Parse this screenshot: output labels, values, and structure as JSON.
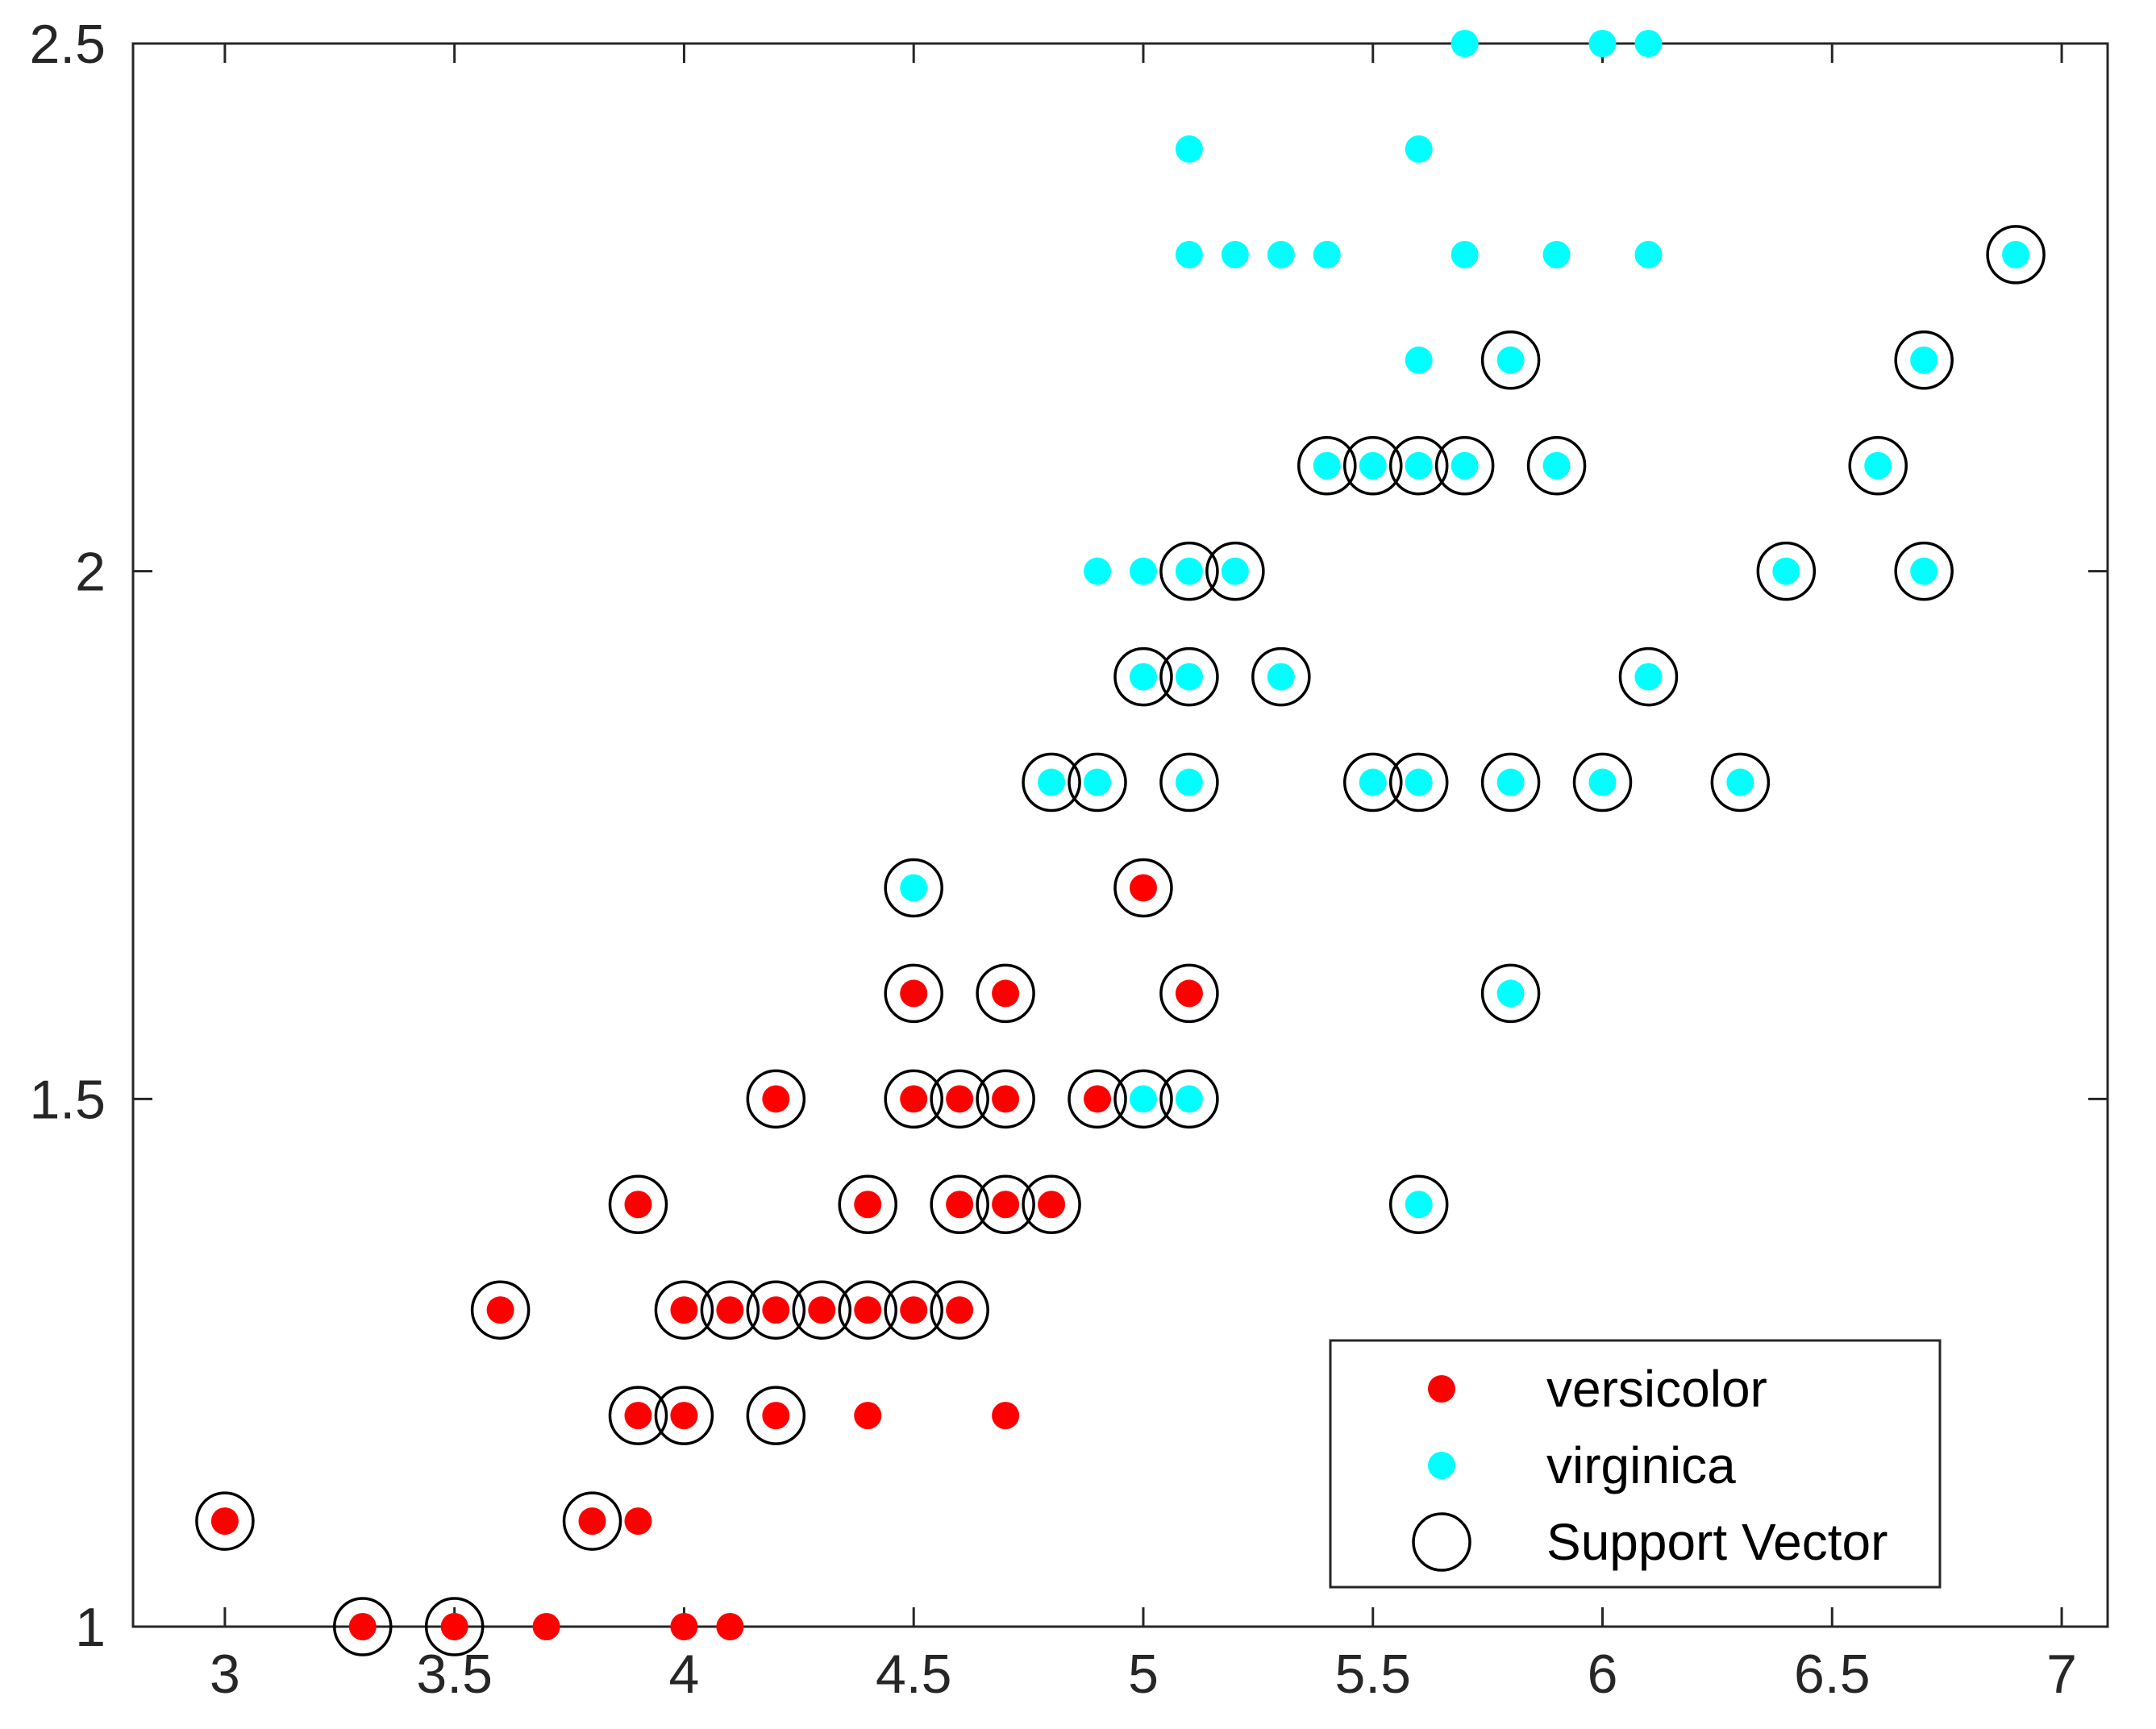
{
  "chart_data": {
    "type": "scatter",
    "title": "",
    "xlabel": "",
    "ylabel": "",
    "xlim": [
      2.8,
      7.1
    ],
    "ylim": [
      1,
      2.5
    ],
    "xticks": [
      3,
      3.5,
      4,
      4.5,
      5,
      5.5,
      6,
      6.5,
      7
    ],
    "xtick_labels": [
      "3",
      "3.5",
      "4",
      "4.5",
      "5",
      "5.5",
      "6",
      "6.5",
      "7"
    ],
    "yticks": [
      1,
      1.5,
      2,
      2.5
    ],
    "ytick_labels": [
      "1",
      "1.5",
      "2",
      "2.5"
    ],
    "grid": false,
    "legend_position": "bottom-right",
    "series": [
      {
        "name": "versicolor",
        "label": "versicolor",
        "color": "#ff0000",
        "marker": "filled-circle",
        "points": [
          [
            3.0,
            1.1
          ],
          [
            3.3,
            1.0
          ],
          [
            3.5,
            1.0
          ],
          [
            3.7,
            1.0
          ],
          [
            4.0,
            1.0
          ],
          [
            4.1,
            1.0
          ],
          [
            3.8,
            1.1
          ],
          [
            3.9,
            1.1
          ],
          [
            3.9,
            1.2
          ],
          [
            4.0,
            1.2
          ],
          [
            4.2,
            1.2
          ],
          [
            4.4,
            1.2
          ],
          [
            4.7,
            1.2
          ],
          [
            3.6,
            1.3
          ],
          [
            4.0,
            1.3
          ],
          [
            4.1,
            1.3
          ],
          [
            4.2,
            1.3
          ],
          [
            4.3,
            1.3
          ],
          [
            4.4,
            1.3
          ],
          [
            4.5,
            1.3
          ],
          [
            4.6,
            1.3
          ],
          [
            3.9,
            1.4
          ],
          [
            4.4,
            1.4
          ],
          [
            4.6,
            1.4
          ],
          [
            4.7,
            1.4
          ],
          [
            4.8,
            1.4
          ],
          [
            4.2,
            1.5
          ],
          [
            4.5,
            1.5
          ],
          [
            4.6,
            1.5
          ],
          [
            4.7,
            1.5
          ],
          [
            4.9,
            1.5
          ],
          [
            4.5,
            1.6
          ],
          [
            4.7,
            1.6
          ],
          [
            5.1,
            1.6
          ],
          [
            5.0,
            1.7
          ]
        ]
      },
      {
        "name": "virginica",
        "label": "virginica",
        "color": "#00ffff",
        "marker": "filled-circle",
        "points": [
          [
            5.6,
            1.4
          ],
          [
            5.0,
            1.5
          ],
          [
            5.1,
            1.5
          ],
          [
            5.8,
            1.6
          ],
          [
            4.5,
            1.7
          ],
          [
            4.8,
            1.8
          ],
          [
            4.9,
            1.8
          ],
          [
            5.1,
            1.8
          ],
          [
            5.5,
            1.8
          ],
          [
            5.6,
            1.8
          ],
          [
            5.8,
            1.8
          ],
          [
            6.0,
            1.8
          ],
          [
            6.3,
            1.8
          ],
          [
            5.0,
            1.9
          ],
          [
            5.1,
            1.9
          ],
          [
            5.3,
            1.9
          ],
          [
            6.1,
            1.9
          ],
          [
            4.9,
            2.0
          ],
          [
            5.0,
            2.0
          ],
          [
            5.1,
            2.0
          ],
          [
            5.2,
            2.0
          ],
          [
            6.4,
            2.0
          ],
          [
            6.7,
            2.0
          ],
          [
            5.4,
            2.1
          ],
          [
            5.5,
            2.1
          ],
          [
            5.6,
            2.1
          ],
          [
            5.7,
            2.1
          ],
          [
            5.9,
            2.1
          ],
          [
            6.6,
            2.1
          ],
          [
            5.6,
            2.2
          ],
          [
            5.8,
            2.2
          ],
          [
            6.7,
            2.2
          ],
          [
            5.1,
            2.3
          ],
          [
            5.2,
            2.3
          ],
          [
            5.3,
            2.3
          ],
          [
            5.4,
            2.3
          ],
          [
            5.7,
            2.3
          ],
          [
            5.9,
            2.3
          ],
          [
            6.1,
            2.3
          ],
          [
            6.9,
            2.3
          ],
          [
            5.1,
            2.4
          ],
          [
            5.6,
            2.4
          ],
          [
            5.7,
            2.5
          ],
          [
            6.0,
            2.5
          ],
          [
            6.1,
            2.5
          ]
        ]
      },
      {
        "name": "support-vector",
        "label": "Support Vector",
        "color": "#000000",
        "marker": "open-circle",
        "points": [
          [
            3.0,
            1.1
          ],
          [
            3.3,
            1.0
          ],
          [
            3.5,
            1.0
          ],
          [
            3.8,
            1.1
          ],
          [
            3.9,
            1.2
          ],
          [
            4.0,
            1.2
          ],
          [
            4.2,
            1.2
          ],
          [
            3.6,
            1.3
          ],
          [
            4.0,
            1.3
          ],
          [
            4.1,
            1.3
          ],
          [
            4.2,
            1.3
          ],
          [
            4.3,
            1.3
          ],
          [
            4.4,
            1.3
          ],
          [
            4.5,
            1.3
          ],
          [
            4.6,
            1.3
          ],
          [
            3.9,
            1.4
          ],
          [
            4.4,
            1.4
          ],
          [
            4.6,
            1.4
          ],
          [
            4.7,
            1.4
          ],
          [
            4.8,
            1.4
          ],
          [
            5.6,
            1.4
          ],
          [
            4.2,
            1.5
          ],
          [
            4.5,
            1.5
          ],
          [
            4.6,
            1.5
          ],
          [
            4.7,
            1.5
          ],
          [
            4.9,
            1.5
          ],
          [
            5.0,
            1.5
          ],
          [
            5.1,
            1.5
          ],
          [
            4.5,
            1.6
          ],
          [
            4.7,
            1.6
          ],
          [
            5.1,
            1.6
          ],
          [
            5.8,
            1.6
          ],
          [
            4.5,
            1.7
          ],
          [
            5.0,
            1.7
          ],
          [
            4.8,
            1.8
          ],
          [
            4.9,
            1.8
          ],
          [
            5.1,
            1.8
          ],
          [
            5.5,
            1.8
          ],
          [
            5.6,
            1.8
          ],
          [
            5.8,
            1.8
          ],
          [
            6.0,
            1.8
          ],
          [
            6.3,
            1.8
          ],
          [
            5.0,
            1.9
          ],
          [
            5.1,
            1.9
          ],
          [
            5.3,
            1.9
          ],
          [
            6.1,
            1.9
          ],
          [
            5.1,
            2.0
          ],
          [
            5.2,
            2.0
          ],
          [
            6.4,
            2.0
          ],
          [
            6.7,
            2.0
          ],
          [
            5.4,
            2.1
          ],
          [
            5.5,
            2.1
          ],
          [
            5.6,
            2.1
          ],
          [
            5.7,
            2.1
          ],
          [
            5.9,
            2.1
          ],
          [
            6.6,
            2.1
          ],
          [
            5.8,
            2.2
          ],
          [
            6.7,
            2.2
          ],
          [
            6.9,
            2.3
          ]
        ]
      }
    ]
  }
}
